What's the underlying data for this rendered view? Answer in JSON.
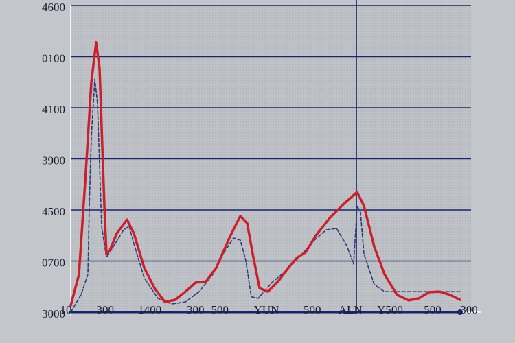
{
  "chart_data": {
    "type": "line",
    "xlim": [
      0,
      100
    ],
    "ylim": [
      0,
      6
    ],
    "grid": true,
    "vline_x": 71.7,
    "yticks": [
      {
        "value": 0,
        "label": "3000"
      },
      {
        "value": 1,
        "label": "0700"
      },
      {
        "value": 2,
        "label": "4500"
      },
      {
        "value": 3,
        "label": "3900"
      },
      {
        "value": 4,
        "label": "4100"
      },
      {
        "value": 5,
        "label": "0100"
      },
      {
        "value": 6,
        "label": "4600"
      }
    ],
    "xticks": [
      {
        "value": 0,
        "label": "10"
      },
      {
        "value": 9.7,
        "label": "300"
      },
      {
        "value": 20.7,
        "label": "1400"
      },
      {
        "value": 32,
        "label": "300"
      },
      {
        "value": 38,
        "label": "500"
      },
      {
        "value": 49.5,
        "label": "YUN"
      },
      {
        "value": 60.8,
        "label": "500"
      },
      {
        "value": 70.2,
        "label": "ALN"
      },
      {
        "value": 80,
        "label": "Y500"
      },
      {
        "value": 90.5,
        "label": "500"
      },
      {
        "value": 99.5,
        "label": "300"
      }
    ],
    "series": [
      {
        "color": "#cc1f2a",
        "dash": false,
        "x": [
          1.19,
          3.22,
          4.92,
          6.27,
          7.46,
          8.31,
          9.49,
          10.0,
          10.85,
          12.54,
          15.08,
          16.78,
          19.32,
          21.86,
          24.41,
          26.95,
          29.49,
          32.03,
          34.58,
          37.12,
          40.51,
          43.05,
          44.75,
          46.1,
          47.8,
          49.83,
          52.37,
          54.92,
          57.12,
          59.15,
          61.69,
          65.08,
          68.47,
          71.86,
          73.56,
          76.1,
          78.64,
          81.69,
          84.58,
          87.12,
          89.66,
          92.2,
          94.75,
          97.29
        ],
        "values": [
          0.13,
          0.74,
          2.75,
          4.5,
          5.28,
          4.77,
          2.08,
          1.14,
          1.21,
          1.54,
          1.81,
          1.54,
          0.87,
          0.47,
          0.2,
          0.24,
          0.4,
          0.58,
          0.6,
          0.87,
          1.48,
          1.88,
          1.74,
          1.14,
          0.47,
          0.4,
          0.6,
          0.87,
          1.07,
          1.17,
          1.5,
          1.84,
          2.11,
          2.35,
          2.08,
          1.28,
          0.74,
          0.34,
          0.23,
          0.27,
          0.39,
          0.4,
          0.34,
          0.24
        ]
      },
      {
        "color": "#2b3a7a",
        "dash": true,
        "x": [
          1.19,
          3.73,
          5.42,
          5.76,
          6.27,
          7.12,
          7.8,
          8.81,
          10.0,
          11.69,
          14.24,
          15.59,
          16.78,
          19.32,
          22.71,
          26.1,
          29.49,
          32.88,
          36.27,
          38.81,
          41.36,
          43.05,
          44.41,
          45.76,
          47.46,
          50.85,
          54.92,
          58.31,
          61.36,
          64.24,
          66.78,
          69.32,
          71.02,
          71.86,
          72.71,
          73.56,
          76.1,
          78.64,
          82.03,
          88.81,
          97.29
        ],
        "values": [
          0,
          0.34,
          0.74,
          2.08,
          3.42,
          4.56,
          4.09,
          1.68,
          1.07,
          1.28,
          1.61,
          1.68,
          1.34,
          0.67,
          0.27,
          0.16,
          0.2,
          0.4,
          0.74,
          1.14,
          1.45,
          1.41,
          1.01,
          0.3,
          0.27,
          0.58,
          0.85,
          1.14,
          1.41,
          1.61,
          1.64,
          1.3,
          0.94,
          2.08,
          1.95,
          1.14,
          0.54,
          0.4,
          0.4,
          0.4,
          0.4
        ]
      }
    ]
  }
}
